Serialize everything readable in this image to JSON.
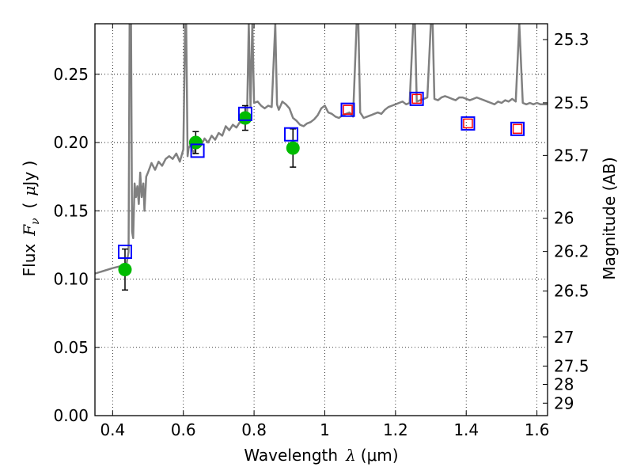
{
  "chart_data": {
    "type": "scatter",
    "xlabel_text": "Wavelength",
    "xlabel_symbol": "λ",
    "xlabel_unit": "(μm)",
    "ylabel_text": "Flux",
    "ylabel_symbol": "F",
    "ylabel_sub": "ν",
    "ylabel_unit_open": "(",
    "ylabel_unit_mu": "μ",
    "ylabel_unit_rest": "Jy )",
    "y2label": "Magnitude (AB)",
    "xlim": [
      0.35,
      1.63
    ],
    "ylim": [
      0.0,
      0.287
    ],
    "grid": true,
    "x_ticks": [
      0.4,
      0.6,
      0.8,
      1.0,
      1.2,
      1.4,
      1.6
    ],
    "x_tick_labels": [
      "0.4",
      "0.6",
      "0.8",
      "1",
      "1.2",
      "1.4",
      "1.6"
    ],
    "y_ticks": [
      0.0,
      0.05,
      0.1,
      0.15,
      0.2,
      0.25
    ],
    "y_tick_labels": [
      "0.00",
      "0.05",
      "0.10",
      "0.15",
      "0.20",
      "0.25"
    ],
    "y2_ticks": [
      25.3,
      25.5,
      25.7,
      26,
      26.2,
      26.5,
      27,
      27.5,
      28,
      29
    ],
    "y2_tick_labels": [
      "25.3",
      "25.5",
      "25.7",
      "26",
      "26.2",
      "26.5",
      "27",
      "27.5",
      "28",
      "29"
    ],
    "colors": {
      "spectrum": "#808080",
      "observed": "#00bb00",
      "model_blue": "#0000ff",
      "model_red": "#ff0000",
      "errorbar": "#000000",
      "grid": "#000000"
    },
    "series": [
      {
        "kind": "spectrum",
        "x": [
          0.35,
          0.4,
          0.43,
          0.44,
          0.445,
          0.448,
          0.452,
          0.455,
          0.458,
          0.462,
          0.466,
          0.47,
          0.474,
          0.478,
          0.482,
          0.487,
          0.49,
          0.495,
          0.5,
          0.51,
          0.52,
          0.53,
          0.54,
          0.55,
          0.56,
          0.57,
          0.58,
          0.59,
          0.6,
          0.605,
          0.608,
          0.612,
          0.615,
          0.62,
          0.63,
          0.64,
          0.65,
          0.66,
          0.67,
          0.68,
          0.69,
          0.7,
          0.71,
          0.72,
          0.73,
          0.74,
          0.75,
          0.76,
          0.77,
          0.78,
          0.785,
          0.79,
          0.795,
          0.8,
          0.81,
          0.82,
          0.83,
          0.84,
          0.85,
          0.86,
          0.865,
          0.87,
          0.88,
          0.89,
          0.9,
          0.91,
          0.92,
          0.93,
          0.94,
          0.95,
          0.96,
          0.97,
          0.98,
          0.99,
          1.0,
          1.01,
          1.02,
          1.03,
          1.04,
          1.05,
          1.06,
          1.07,
          1.08,
          1.09,
          1.095,
          1.1,
          1.11,
          1.12,
          1.13,
          1.14,
          1.15,
          1.16,
          1.17,
          1.18,
          1.19,
          1.2,
          1.21,
          1.22,
          1.23,
          1.24,
          1.25,
          1.255,
          1.26,
          1.27,
          1.28,
          1.29,
          1.3,
          1.305,
          1.31,
          1.32,
          1.33,
          1.34,
          1.35,
          1.36,
          1.37,
          1.38,
          1.39,
          1.4,
          1.41,
          1.42,
          1.43,
          1.44,
          1.45,
          1.46,
          1.47,
          1.48,
          1.49,
          1.5,
          1.51,
          1.52,
          1.53,
          1.54,
          1.55,
          1.56,
          1.57,
          1.58,
          1.59,
          1.6,
          1.61,
          1.62,
          1.63
        ],
        "y": [
          0.104,
          0.108,
          0.11,
          0.112,
          0.12,
          0.287,
          0.287,
          0.135,
          0.13,
          0.17,
          0.16,
          0.168,
          0.155,
          0.178,
          0.16,
          0.17,
          0.15,
          0.175,
          0.178,
          0.185,
          0.18,
          0.186,
          0.183,
          0.188,
          0.19,
          0.188,
          0.192,
          0.186,
          0.195,
          0.287,
          0.287,
          0.19,
          0.196,
          0.198,
          0.192,
          0.201,
          0.198,
          0.203,
          0.2,
          0.205,
          0.202,
          0.207,
          0.205,
          0.212,
          0.209,
          0.213,
          0.211,
          0.215,
          0.214,
          0.218,
          0.287,
          0.226,
          0.287,
          0.229,
          0.23,
          0.227,
          0.225,
          0.227,
          0.226,
          0.287,
          0.228,
          0.224,
          0.23,
          0.228,
          0.225,
          0.218,
          0.216,
          0.213,
          0.212,
          0.214,
          0.215,
          0.217,
          0.22,
          0.225,
          0.227,
          0.222,
          0.221,
          0.219,
          0.218,
          0.22,
          0.221,
          0.222,
          0.219,
          0.287,
          0.287,
          0.222,
          0.218,
          0.219,
          0.22,
          0.221,
          0.222,
          0.221,
          0.224,
          0.226,
          0.227,
          0.228,
          0.229,
          0.23,
          0.228,
          0.229,
          0.287,
          0.287,
          0.23,
          0.231,
          0.232,
          0.233,
          0.287,
          0.287,
          0.232,
          0.231,
          0.233,
          0.234,
          0.233,
          0.232,
          0.231,
          0.233,
          0.233,
          0.232,
          0.231,
          0.232,
          0.233,
          0.232,
          0.231,
          0.23,
          0.229,
          0.228,
          0.23,
          0.229,
          0.231,
          0.23,
          0.232,
          0.23,
          0.287,
          0.229,
          0.228,
          0.229,
          0.228,
          0.229,
          0.228,
          0.228,
          0.228
        ]
      },
      {
        "kind": "observed",
        "x": [
          0.435,
          0.635,
          0.775,
          0.91
        ],
        "y": [
          0.107,
          0.2,
          0.218,
          0.196
        ],
        "yerr": [
          0.015,
          0.008,
          0.009,
          0.014
        ]
      },
      {
        "kind": "model_photometry",
        "x": [
          0.435,
          0.64,
          0.775,
          0.905,
          1.065,
          1.26,
          1.405,
          1.545
        ],
        "y": [
          0.12,
          0.194,
          0.221,
          0.206,
          0.224,
          0.232,
          0.214,
          0.21
        ],
        "inner_red": [
          false,
          false,
          false,
          false,
          true,
          true,
          true,
          true
        ]
      }
    ]
  }
}
